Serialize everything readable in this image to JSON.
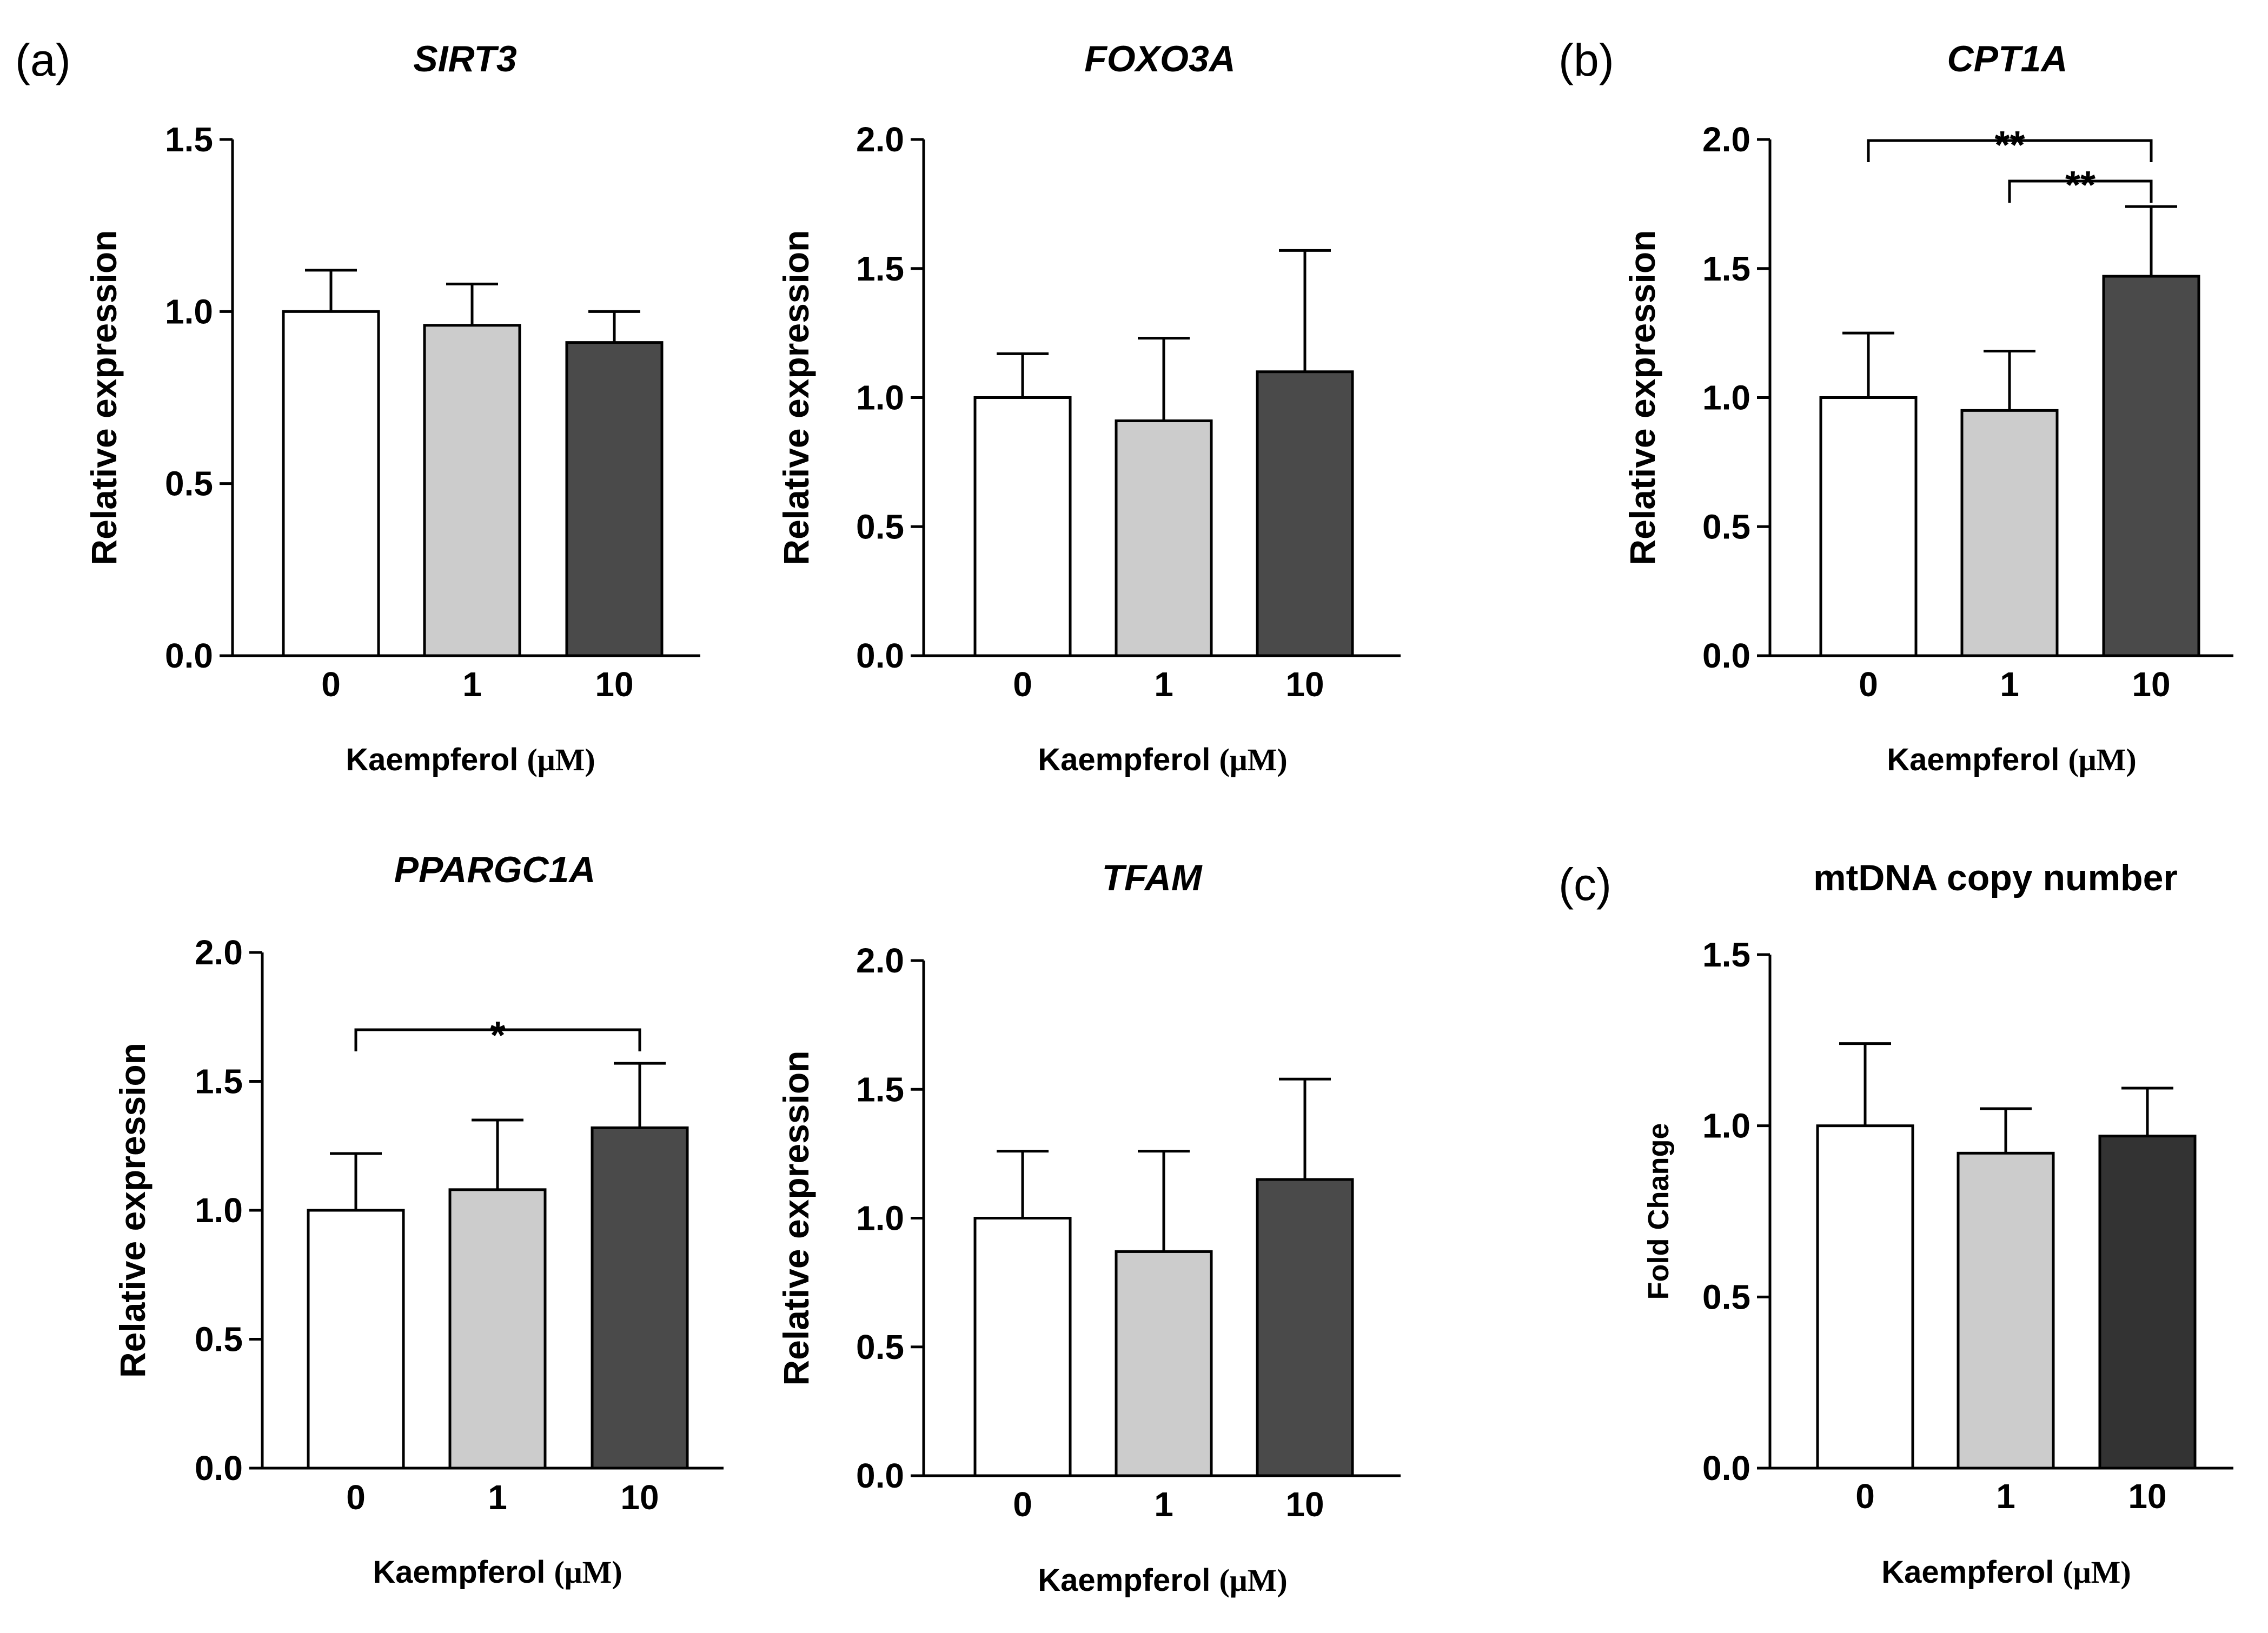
{
  "panel_labels": [
    "(a)",
    "(b)",
    "(c)"
  ],
  "x_axis_label": "Kaempferol",
  "x_axis_unit": "(μM)",
  "colors": {
    "dose_0": "#ffffff",
    "dose_1": "#cccccc",
    "dose_10": "#4a4a4a",
    "dose_10_mtdna": "#333333",
    "stroke": "#000000"
  },
  "chart_data": [
    {
      "type": "bar",
      "panel": "(a)",
      "title": "SIRT3",
      "title_italic": true,
      "xlabel": "Kaempferol (μM)",
      "ylabel": "Relative expression",
      "categories": [
        "0",
        "1",
        "10"
      ],
      "values": [
        1.0,
        0.96,
        0.91
      ],
      "errors": [
        0.12,
        0.12,
        0.09
      ],
      "ylim": [
        0,
        1.5
      ],
      "yticks": [
        "0.0",
        "0.5",
        "1.0",
        "1.5"
      ],
      "significance": []
    },
    {
      "type": "bar",
      "panel": "(a)",
      "title": "FOXO3A",
      "title_italic": true,
      "xlabel": "Kaempferol (μM)",
      "ylabel": "Relative expression",
      "categories": [
        "0",
        "1",
        "10"
      ],
      "values": [
        1.0,
        0.91,
        1.1
      ],
      "errors": [
        0.17,
        0.32,
        0.47
      ],
      "ylim": [
        0,
        2.0
      ],
      "yticks": [
        "0.0",
        "0.5",
        "1.0",
        "1.5",
        "2.0"
      ],
      "significance": []
    },
    {
      "type": "bar",
      "panel": "(b)",
      "title": "CPT1A",
      "title_italic": true,
      "xlabel": "Kaempferol (μM)",
      "ylabel": "Relative expression",
      "categories": [
        "0",
        "1",
        "10"
      ],
      "values": [
        1.0,
        0.95,
        1.47
      ],
      "errors": [
        0.25,
        0.23,
        0.27
      ],
      "ylim": [
        0,
        2.0
      ],
      "yticks": [
        "0.0",
        "0.5",
        "1.0",
        "1.5",
        "2.0"
      ],
      "significance": [
        {
          "from": "0",
          "to": "10",
          "label": "**"
        },
        {
          "from": "1",
          "to": "10",
          "label": "**"
        }
      ]
    },
    {
      "type": "bar",
      "panel": "(a)",
      "title": "PPARGC1A",
      "title_italic": true,
      "xlabel": "Kaempferol (μM)",
      "ylabel": "Relative expression",
      "categories": [
        "0",
        "1",
        "10"
      ],
      "values": [
        1.0,
        1.08,
        1.32
      ],
      "errors": [
        0.22,
        0.27,
        0.25
      ],
      "ylim": [
        0,
        2.0
      ],
      "yticks": [
        "0.0",
        "0.5",
        "1.0",
        "1.5",
        "2.0"
      ],
      "significance": [
        {
          "from": "0",
          "to": "10",
          "label": "*"
        }
      ]
    },
    {
      "type": "bar",
      "panel": "(a)",
      "title": "TFAM",
      "title_italic": true,
      "xlabel": "Kaempferol (μM)",
      "ylabel": "Relative expression",
      "categories": [
        "0",
        "1",
        "10"
      ],
      "values": [
        1.0,
        0.87,
        1.15
      ],
      "errors": [
        0.26,
        0.39,
        0.39
      ],
      "ylim": [
        0,
        2.0
      ],
      "yticks": [
        "0.0",
        "0.5",
        "1.0",
        "1.5",
        "2.0"
      ],
      "significance": []
    },
    {
      "type": "bar",
      "panel": "(c)",
      "title": "mtDNA copy number",
      "title_italic": false,
      "xlabel": "Kaempferol (μM)",
      "ylabel": "Fold Change",
      "categories": [
        "0",
        "1",
        "10"
      ],
      "values": [
        1.0,
        0.92,
        0.97
      ],
      "errors": [
        0.24,
        0.13,
        0.14
      ],
      "ylim": [
        0,
        1.5
      ],
      "yticks": [
        "0.0",
        "0.5",
        "1.0",
        "1.5"
      ],
      "significance": []
    }
  ]
}
